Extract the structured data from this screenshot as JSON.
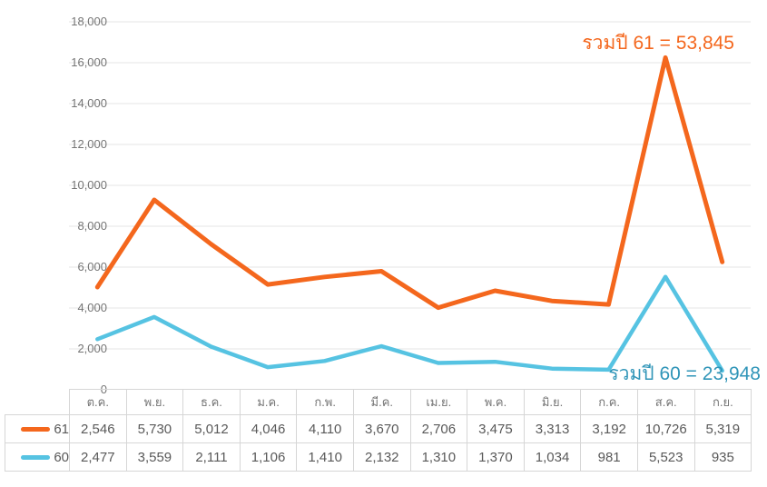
{
  "chart_data": {
    "type": "line",
    "plot_mode": "stacked",
    "title": "",
    "xlabel": "",
    "ylabel": "",
    "categories": [
      "ต.ค.",
      "พ.ย.",
      "ธ.ค.",
      "ม.ค.",
      "ก.พ.",
      "มี.ค.",
      "เม.ย.",
      "พ.ค.",
      "มิ.ย.",
      "ก.ค.",
      "ส.ค.",
      "ก.ย."
    ],
    "series": [
      {
        "name": "61",
        "color": "#F4671D",
        "values": [
          2546,
          5730,
          5012,
          4046,
          4110,
          3670,
          2706,
          3475,
          3313,
          3192,
          10726,
          5319
        ],
        "total": 53845
      },
      {
        "name": "60",
        "color": "#56C3E2",
        "values": [
          2477,
          3559,
          2111,
          1106,
          1410,
          2132,
          1310,
          1370,
          1034,
          981,
          5523,
          935
        ],
        "total": 23948
      }
    ],
    "ylim": [
      0,
      18000
    ],
    "ytick_interval": 2000,
    "ytick_labels": [
      "18,000",
      "16,000",
      "14,000",
      "12,000",
      "10,000",
      "8,000",
      "6,000",
      "4,000",
      "2,000",
      "0"
    ],
    "grid": "horizontal",
    "legend_position": "table-left-column",
    "annotations": [
      {
        "id": "anno61",
        "text": "รวมปี 61 = 53,845",
        "color": "#F4671D"
      },
      {
        "id": "anno60",
        "text": "รวมปี 60 = 23,948",
        "color": "#3095B8"
      }
    ]
  },
  "table": {
    "header": [
      "ต.ค.",
      "พ.ย.",
      "ธ.ค.",
      "ม.ค.",
      "ก.พ.",
      "มี.ค.",
      "เม.ย.",
      "พ.ค.",
      "มิ.ย.",
      "ก.ค.",
      "ส.ค.",
      "ก.ย."
    ],
    "rows": [
      {
        "label": "61",
        "color": "#F4671D",
        "cells": [
          "2,546",
          "5,730",
          "5,012",
          "4,046",
          "4,110",
          "3,670",
          "2,706",
          "3,475",
          "3,313",
          "3,192",
          "10,726",
          "5,319"
        ]
      },
      {
        "label": "60",
        "color": "#56C3E2",
        "cells": [
          "2,477",
          "3,559",
          "2,111",
          "1,106",
          "1,410",
          "2,132",
          "1,310",
          "1,370",
          "1,034",
          "981",
          "5,523",
          "935"
        ]
      }
    ]
  },
  "colors": {
    "grid": "#E4E4E4",
    "axis_text": "#757575",
    "table_border": "#D6D6D6",
    "value_text": "#595959"
  }
}
